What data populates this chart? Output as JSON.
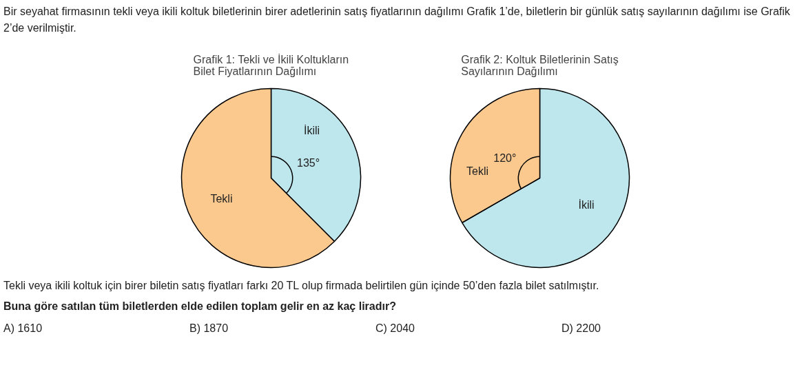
{
  "chart_data": [
    {
      "type": "other",
      "annotations": [
        "Bir seyahat firmasının tekli veya ikili koltuk biletlerinin birer adetlerinin satış fiyatlarının dağılımı Grafik 1’de, biletlerin bir günlük satış sayılarının dağılımı ise Grafik 2’de verilmiştir."
      ]
    },
    {
      "type": "pie",
      "title": "Grafik 1: Tekli ve İkili Koltukların Bilet Fiyatlarının Dağılımı",
      "categories": [
        "İkili",
        "Tekli"
      ],
      "values": [
        37.5,
        62.5
      ],
      "colors": [
        "#bde6ed",
        "#fbc98e"
      ],
      "annotations": [
        "135°"
      ]
    },
    {
      "type": "pie",
      "title": "Grafik 2: Koltuk Biletlerinin Satış Sayılarının Dağılımı",
      "categories": [
        "İkili",
        "Tekli"
      ],
      "values": [
        66.7,
        33.3
      ],
      "colors": [
        "#bde6ed",
        "#fbc98e"
      ],
      "annotations": [
        "120°"
      ]
    },
    {
      "type": "other",
      "annotations": [
        "Tekli veya ikili koltuk için birer biletin satış fiyatları farkı 20 TL olup firmada belirtilen gün içinde 50’den fazla bilet satılmıştır.",
        "Buna göre satılan tüm biletlerden elde edilen toplam gelir en az kaç liradır?",
        "A) 1610",
        "B) 1870",
        "C) 2040",
        "D) 2200"
      ]
    }
  ]
}
